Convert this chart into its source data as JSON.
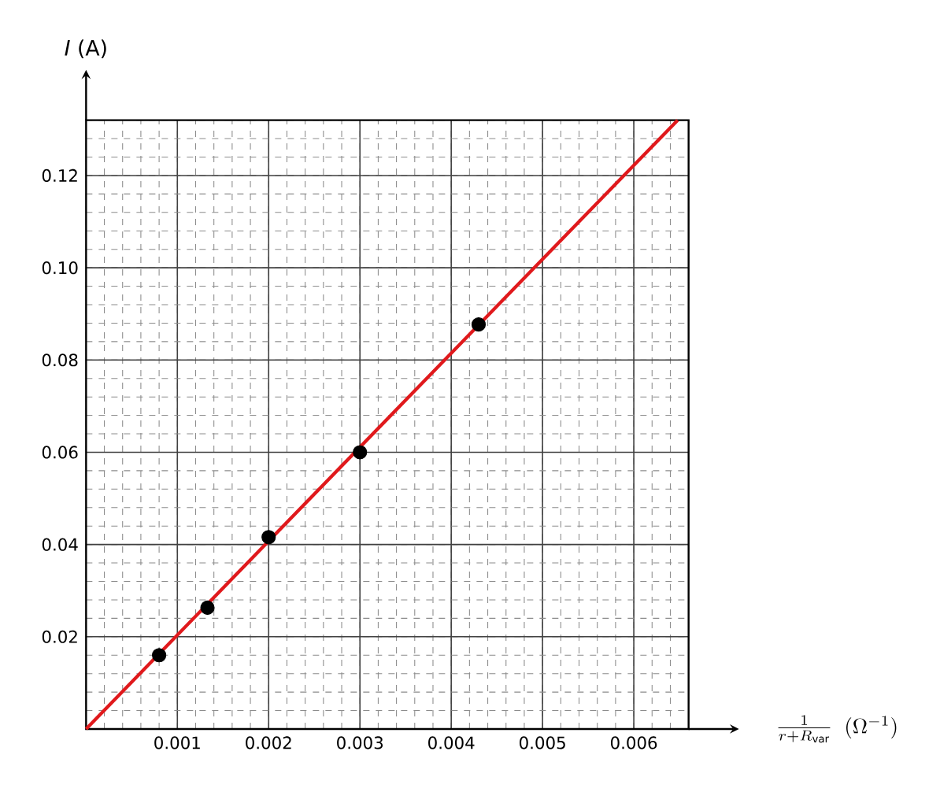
{
  "chart_data": {
    "type": "scatter",
    "xlabel": "\\frac{1}{r+R_{\\mathrm{var}}}\\;\\;(\\Omega^{-1})",
    "ylabel": "*I* (A)",
    "xlim": [
      0,
      0.0066
    ],
    "ylim": [
      0,
      0.132
    ],
    "xticks": [
      0.001,
      0.002,
      0.003,
      0.004,
      0.005,
      0.006
    ],
    "yticks": [
      0.02,
      0.04,
      0.06,
      0.08,
      {
        "value": 0.1,
        "label": "0.10"
      },
      0.12
    ],
    "grid": true,
    "series": [
      {
        "color": "#000000",
        "marker": "circle",
        "x": [
          0.0008,
          0.00133,
          0.002,
          0.003,
          0.0043
        ],
        "values": [
          0.016,
          0.0263,
          0.0416,
          0.06,
          0.0877
        ]
      },
      {
        "type": "line",
        "color": "#e0191c",
        "marker": "none",
        "line_style": "solid",
        "x": [
          0,
          0.00648
        ],
        "values": [
          0,
          0.132
        ]
      }
    ]
  }
}
